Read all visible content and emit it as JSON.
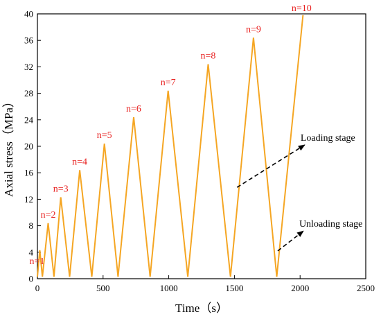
{
  "chart_data": {
    "type": "line",
    "xlabel": "Time（s）",
    "ylabel": "Axial stress（MPa）",
    "xlim": [
      0,
      2500
    ],
    "ylim": [
      0,
      40
    ],
    "xticks": [
      0,
      500,
      1000,
      1500,
      2000,
      2500
    ],
    "yticks": [
      0,
      4,
      8,
      12,
      16,
      20,
      24,
      28,
      32,
      36,
      40
    ],
    "grid": false,
    "series": [
      {
        "color": "#F5A623",
        "x": [
          0,
          18,
          38,
          82,
          126,
          178,
          245,
          322,
          414,
          510,
          614,
          733,
          858,
          995,
          1145,
          1300,
          1470,
          1645,
          1822,
          2022
        ],
        "y": [
          0.3,
          4.3,
          0.3,
          8.4,
          0.3,
          12.3,
          0.3,
          16.4,
          0.3,
          20.4,
          0.3,
          24.4,
          0.3,
          28.4,
          0.3,
          32.4,
          0.3,
          36.4,
          0.3,
          39.8
        ]
      }
    ],
    "peak_labels": [
      {
        "text": "n=1",
        "x": 18,
        "y": 4.3
      },
      {
        "text": "n=2",
        "x": 82,
        "y": 8.4
      },
      {
        "text": "n=3",
        "x": 178,
        "y": 12.3
      },
      {
        "text": "n=4",
        "x": 322,
        "y": 16.4
      },
      {
        "text": "n=5",
        "x": 510,
        "y": 20.4
      },
      {
        "text": "n=6",
        "x": 733,
        "y": 24.4
      },
      {
        "text": "n=7",
        "x": 995,
        "y": 28.4
      },
      {
        "text": "n=8",
        "x": 1300,
        "y": 32.4
      },
      {
        "text": "n=9",
        "x": 1645,
        "y": 36.4
      },
      {
        "text": "n=10",
        "x": 2022,
        "y": 39.8
      }
    ],
    "annotations": [
      {
        "text": "Loading stage",
        "from": [
          1520,
          13.8
        ],
        "to": [
          2035,
          20.2
        ]
      },
      {
        "text": "Unloading stage",
        "from": [
          1830,
          4.2
        ],
        "to": [
          2025,
          7.2
        ]
      }
    ],
    "label_color": "#E8201F"
  }
}
